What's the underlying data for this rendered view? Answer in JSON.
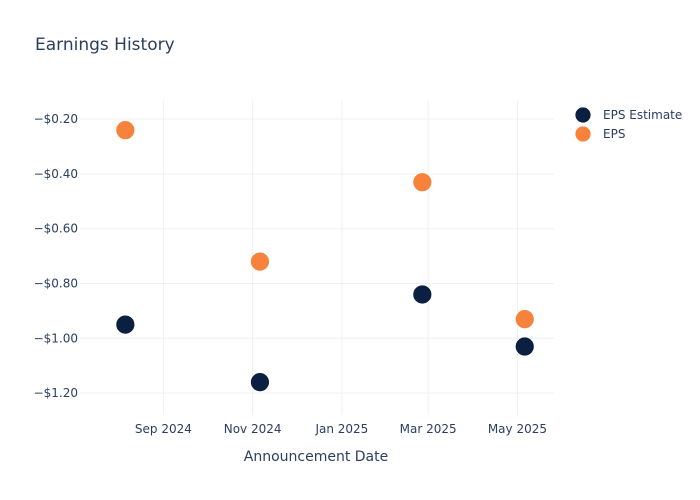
{
  "chart_data": {
    "type": "scatter",
    "title": "Earnings History",
    "xlabel": "Announcement Date",
    "ylabel": "",
    "x_ticks": [
      "Sep 2024",
      "Nov 2024",
      "Jan 2025",
      "Mar 2025",
      "May 2025"
    ],
    "y_ticks": [
      "−$0.20",
      "−$0.40",
      "−$0.60",
      "−$0.80",
      "−$1.00",
      "−$1.20"
    ],
    "ylim": [
      -1.28,
      -0.13
    ],
    "xlim": [
      "2024-07-06",
      "2025-05-26"
    ],
    "grid": true,
    "legend_position": "top-right",
    "series": [
      {
        "name": "EPS Estimate",
        "color": "#0b1f40",
        "points": [
          {
            "x": "2024-08-06",
            "y": -0.95
          },
          {
            "x": "2024-11-06",
            "y": -1.16
          },
          {
            "x": "2025-02-25",
            "y": -0.84
          },
          {
            "x": "2025-05-06",
            "y": -1.03
          }
        ]
      },
      {
        "name": "EPS",
        "color": "#f7823b",
        "points": [
          {
            "x": "2024-08-06",
            "y": -0.24
          },
          {
            "x": "2024-11-06",
            "y": -0.72
          },
          {
            "x": "2025-02-25",
            "y": -0.43
          },
          {
            "x": "2025-05-06",
            "y": -0.93
          }
        ]
      }
    ]
  }
}
